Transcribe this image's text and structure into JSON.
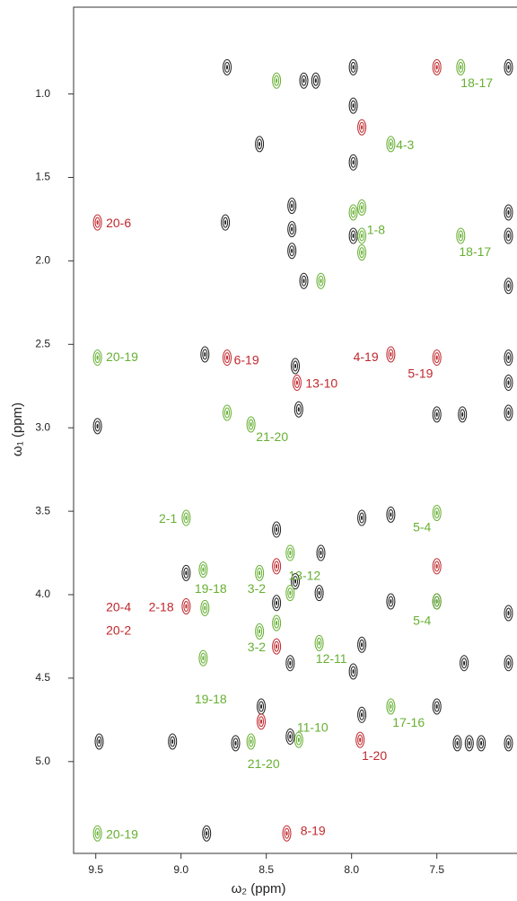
{
  "chart_data": {
    "type": "scatter",
    "xlabel": "ω₂ (ppm)",
    "ylabel": "ω₁ (ppm)",
    "xlim": [
      9.63,
      7.03
    ],
    "ylim": [
      0.48,
      5.55
    ],
    "xticks": [
      9.5,
      {
        "value": 9,
        "label": "9.0"
      },
      8.5,
      {
        "value": 8,
        "label": "8.0"
      },
      7.5
    ],
    "yticks": [
      {
        "value": 1,
        "label": "1.0"
      },
      1.5,
      {
        "value": 2,
        "label": "2.0"
      },
      2.5,
      {
        "value": 3,
        "label": "3.0"
      },
      3.5,
      {
        "value": 4,
        "label": "4.0"
      },
      4.5,
      {
        "value": 5,
        "label": "5.0"
      }
    ],
    "series": [
      {
        "color": "#222222",
        "x": [
          8.73,
          8.28,
          8.21,
          7.99,
          7.08,
          7.99,
          8.54,
          7.99,
          8.35,
          8.35,
          8.35,
          8.74,
          7.99,
          8.28,
          7.08,
          7.08,
          7.08,
          8.86,
          8.33,
          8.31,
          9.49,
          7.5,
          7.35,
          7.08,
          7.08,
          7.08,
          8.44,
          7.94,
          7.77,
          8.97,
          8.18,
          8.19,
          8.44,
          8.33,
          7.77,
          7.5,
          7.08,
          8.36,
          7.94,
          7.99,
          7.34,
          7.08,
          8.53,
          7.5,
          8.36,
          7.94,
          9.48,
          8.68,
          7.38,
          7.31,
          7.24,
          7.08,
          9.05,
          8.85
        ],
        "values": [
          0.84,
          0.92,
          0.92,
          0.84,
          0.84,
          1.07,
          1.3,
          1.41,
          1.67,
          1.81,
          1.94,
          1.77,
          1.85,
          2.12,
          1.71,
          1.85,
          2.15,
          2.56,
          2.63,
          2.89,
          2.99,
          2.92,
          2.92,
          2.91,
          2.58,
          2.73,
          3.61,
          3.54,
          3.52,
          3.87,
          3.75,
          3.99,
          4.05,
          3.92,
          4.04,
          4.04,
          4.11,
          4.41,
          4.3,
          4.46,
          4.41,
          4.41,
          4.67,
          4.67,
          4.85,
          4.72,
          4.88,
          4.89,
          4.89,
          4.89,
          4.89,
          4.89,
          4.88,
          5.43
        ]
      },
      {
        "color": "#c0282d",
        "x": [
          7.5,
          7.94,
          9.49,
          8.73,
          7.77,
          7.5,
          8.32,
          8.44,
          7.5,
          8.97,
          8.44,
          7.95,
          8.38,
          8.53
        ],
        "values": [
          0.84,
          1.2,
          1.77,
          2.58,
          2.56,
          2.58,
          2.73,
          3.83,
          3.83,
          4.07,
          4.31,
          4.87,
          5.43,
          4.76
        ]
      },
      {
        "color": "#66b032",
        "x": [
          8.44,
          7.36,
          7.77,
          7.94,
          7.99,
          7.94,
          7.94,
          8.18,
          7.36,
          9.49,
          8.73,
          8.59,
          8.97,
          7.5,
          8.87,
          8.54,
          8.36,
          8.36,
          8.86,
          7.5,
          8.54,
          8.44,
          8.19,
          8.87,
          7.77,
          8.59,
          8.31,
          9.49
        ],
        "values": [
          0.92,
          0.84,
          1.3,
          1.68,
          1.71,
          1.95,
          1.85,
          2.12,
          1.85,
          2.58,
          2.91,
          2.98,
          3.54,
          3.51,
          3.85,
          3.87,
          3.75,
          3.99,
          4.08,
          4.04,
          4.22,
          4.17,
          4.29,
          4.38,
          4.67,
          4.88,
          4.87,
          5.43
        ]
      }
    ],
    "annotations": [
      {
        "text": "18-17",
        "x": 7.36,
        "y": 0.94,
        "color": "#66b032"
      },
      {
        "text": "4-3",
        "x": 7.74,
        "y": 1.31,
        "color": "#66b032"
      },
      {
        "text": "20-6",
        "x": 9.44,
        "y": 1.78,
        "color": "#c0282d"
      },
      {
        "text": "1-8",
        "x": 7.91,
        "y": 1.82,
        "color": "#66b032"
      },
      {
        "text": "18-17",
        "x": 7.37,
        "y": 1.95,
        "color": "#66b032"
      },
      {
        "text": "20-19",
        "x": 9.44,
        "y": 2.58,
        "color": "#66b032"
      },
      {
        "text": "6-19",
        "x": 8.69,
        "y": 2.6,
        "color": "#c0282d"
      },
      {
        "text": "4-19",
        "x": 7.99,
        "y": 2.58,
        "color": "#c0282d"
      },
      {
        "text": "5-19",
        "x": 7.67,
        "y": 2.68,
        "color": "#c0282d"
      },
      {
        "text": "13-10",
        "x": 8.27,
        "y": 2.74,
        "color": "#c0282d"
      },
      {
        "text": "21-20",
        "x": 8.56,
        "y": 3.06,
        "color": "#66b032"
      },
      {
        "text": "2-1",
        "x": 9.13,
        "y": 3.55,
        "color": "#66b032"
      },
      {
        "text": "5-4",
        "x": 7.64,
        "y": 3.6,
        "color": "#66b032"
      },
      {
        "text": "13-12",
        "x": 8.37,
        "y": 3.89,
        "color": "#66b032"
      },
      {
        "text": "19-18",
        "x": 8.92,
        "y": 3.97,
        "color": "#66b032"
      },
      {
        "text": "3-2",
        "x": 8.61,
        "y": 3.97,
        "color": "#66b032"
      },
      {
        "text": "20-4",
        "x": 9.44,
        "y": 4.08,
        "color": "#c0282d"
      },
      {
        "text": "2-18",
        "x": 9.19,
        "y": 4.08,
        "color": "#c0282d"
      },
      {
        "text": "5-4",
        "x": 7.64,
        "y": 4.16,
        "color": "#66b032"
      },
      {
        "text": "20-2",
        "x": 9.44,
        "y": 4.22,
        "color": "#c0282d"
      },
      {
        "text": "3-2",
        "x": 8.61,
        "y": 4.32,
        "color": "#66b032"
      },
      {
        "text": "12-11",
        "x": 8.21,
        "y": 4.39,
        "color": "#66b032"
      },
      {
        "text": "19-18",
        "x": 8.92,
        "y": 4.63,
        "color": "#66b032"
      },
      {
        "text": "17-16",
        "x": 7.76,
        "y": 4.77,
        "color": "#66b032"
      },
      {
        "text": "11-10",
        "x": 8.32,
        "y": 4.8,
        "color": "#66b032"
      },
      {
        "text": "21-20",
        "x": 8.61,
        "y": 5.02,
        "color": "#66b032"
      },
      {
        "text": "1-20",
        "x": 7.94,
        "y": 4.97,
        "color": "#c0282d"
      },
      {
        "text": "8-19",
        "x": 8.3,
        "y": 5.42,
        "color": "#c0282d"
      },
      {
        "text": "20-19",
        "x": 9.44,
        "y": 5.44,
        "color": "#66b032"
      }
    ]
  }
}
